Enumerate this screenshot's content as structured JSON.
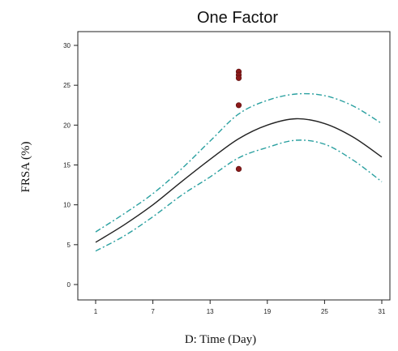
{
  "chart_data": {
    "type": "line",
    "title": "One Factor",
    "xlabel": "D: Time (Day)",
    "ylabel": "FRSA (%)",
    "x_tick_labels": [
      "1",
      "7",
      "13",
      "19",
      "25",
      "31"
    ],
    "xlim": [
      1,
      31
    ],
    "ylim": [
      0,
      30
    ],
    "y_ticks": [
      0,
      5,
      10,
      15,
      20,
      25,
      30
    ],
    "series": [
      {
        "role": "fit",
        "color": "#222222",
        "x": [
          1,
          4,
          7,
          10,
          13,
          16,
          19,
          22,
          25,
          28,
          31
        ],
        "y": [
          5.3,
          7.5,
          10.0,
          12.9,
          15.7,
          18.3,
          20.0,
          20.8,
          20.2,
          18.5,
          16.0
        ]
      },
      {
        "role": "upper-confidence",
        "color": "#2aa0a0",
        "x": [
          1,
          4,
          7,
          10,
          13,
          16,
          19,
          22,
          25,
          28,
          31
        ],
        "y": [
          6.6,
          8.9,
          11.4,
          14.5,
          18.0,
          21.4,
          23.1,
          23.9,
          23.7,
          22.4,
          20.2
        ]
      },
      {
        "role": "lower-confidence",
        "color": "#2aa0a0",
        "x": [
          1,
          4,
          7,
          10,
          13,
          16,
          19,
          22,
          25,
          28,
          31
        ],
        "y": [
          4.2,
          6.1,
          8.5,
          11.2,
          13.5,
          15.9,
          17.2,
          18.1,
          17.6,
          15.6,
          12.9
        ]
      }
    ],
    "points": {
      "color": "#8b1a1a",
      "x": [
        16,
        16,
        16,
        16,
        16
      ],
      "y": [
        26.7,
        26.3,
        25.9,
        22.5,
        14.5
      ]
    },
    "grid": false,
    "legend": "none"
  }
}
